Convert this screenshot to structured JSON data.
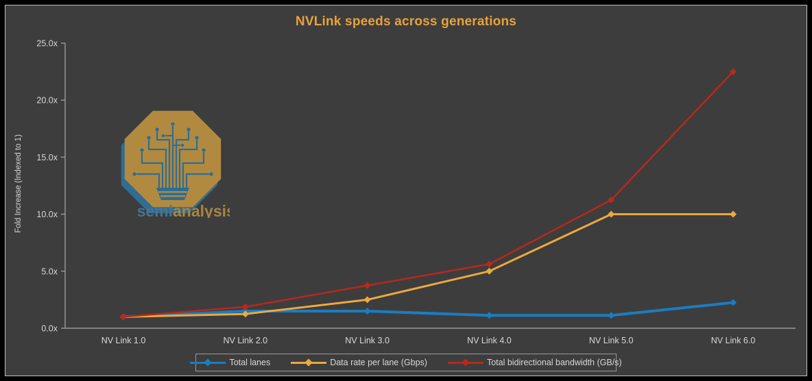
{
  "title": "NVLink speeds across generations",
  "logo": {
    "brand_semi": "semi",
    "brand_analysis": "analysis",
    "badge_fill": "#b28a3f",
    "badge_shadow": "#2e6d94",
    "circuit_color": "#2e6d94",
    "semi_color": "#4a7392",
    "analysis_color": "#a9853f"
  },
  "colors": {
    "background": "#3d3d3d",
    "frame": "#000000",
    "panel_border": "#c2c2c2",
    "axis": "#9a9a9a",
    "tick_text": "#d8d8d8",
    "title_text": "#e9a23b",
    "legend_border": "#9a9a9a"
  },
  "chart_data": {
    "type": "line",
    "title": "NVLink speeds across generations",
    "xlabel": "",
    "ylabel": "Fold Increase (Indexed to 1)",
    "categories": [
      "NV Link 1.0",
      "NV Link 2.0",
      "NV Link 3.0",
      "NV Link 4.0",
      "NV Link 5.0",
      "NV Link 6.0"
    ],
    "ylim": [
      0,
      25
    ],
    "y_ticks": [
      {
        "label": "0.0x",
        "value": 0
      },
      {
        "label": "5.0x",
        "value": 5
      },
      {
        "label": "10.0x",
        "value": 10
      },
      {
        "label": "15.0x",
        "value": 15
      },
      {
        "label": "20.0x",
        "value": 20
      },
      {
        "label": "25.0x",
        "value": 25
      }
    ],
    "grid": false,
    "legend_position": "bottom",
    "series": [
      {
        "name": "Total lanes",
        "color": "#1a7dc2",
        "line_width": 4,
        "values": [
          1,
          1.5,
          1.5,
          1.125,
          1.125,
          2.25
        ]
      },
      {
        "name": "Data rate per lane (Gbps)",
        "color": "#eca93f",
        "line_width": 3,
        "values": [
          1,
          1.25,
          2.5,
          5,
          10,
          10
        ]
      },
      {
        "name": "Total bidirectional bandwidth (GB/s)",
        "color": "#b9281b",
        "line_width": 2.5,
        "values": [
          1,
          1.875,
          3.75,
          5.625,
          11.25,
          22.5
        ]
      }
    ]
  }
}
